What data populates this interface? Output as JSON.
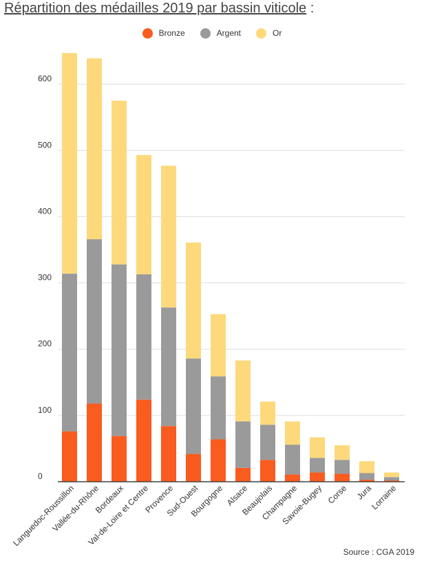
{
  "title_main": "Répartition des médailles 2019 par bassin viticole",
  "title_suffix": " :",
  "source": "Source : CGA 2019",
  "chart_data": {
    "type": "bar",
    "stacked": true,
    "title": "Répartition des médailles 2019 par bassin viticole",
    "xlabel": "",
    "ylabel": "",
    "ylim": [
      0,
      650
    ],
    "yticks": [
      0,
      100,
      200,
      300,
      400,
      500,
      600
    ],
    "grid": true,
    "legend": "top-center",
    "categories": [
      "Languedoc-Roussillon",
      "Vallée-du-Rhône",
      "Bordeaux",
      "Val-de-Loire et Centre",
      "Provence",
      "Sud-Ouest",
      "Bourgogne",
      "Alsace",
      "Beaujolais",
      "Champagne",
      "Savoie-Bugey",
      "Corse",
      "Jura",
      "Lorraine"
    ],
    "series": [
      {
        "name": "Bronze",
        "color": "#fa5b1f",
        "values": [
          76,
          118,
          69,
          124,
          84,
          42,
          64,
          21,
          33,
          11,
          14,
          12,
          3,
          2
        ]
      },
      {
        "name": "Argent",
        "color": "#9a9a9a",
        "values": [
          238,
          248,
          259,
          189,
          179,
          144,
          95,
          70,
          53,
          45,
          22,
          21,
          10,
          5
        ]
      },
      {
        "name": "Or",
        "color": "#fdd97c",
        "values": [
          333,
          273,
          247,
          180,
          214,
          175,
          94,
          92,
          35,
          35,
          31,
          22,
          18,
          7
        ]
      }
    ]
  }
}
